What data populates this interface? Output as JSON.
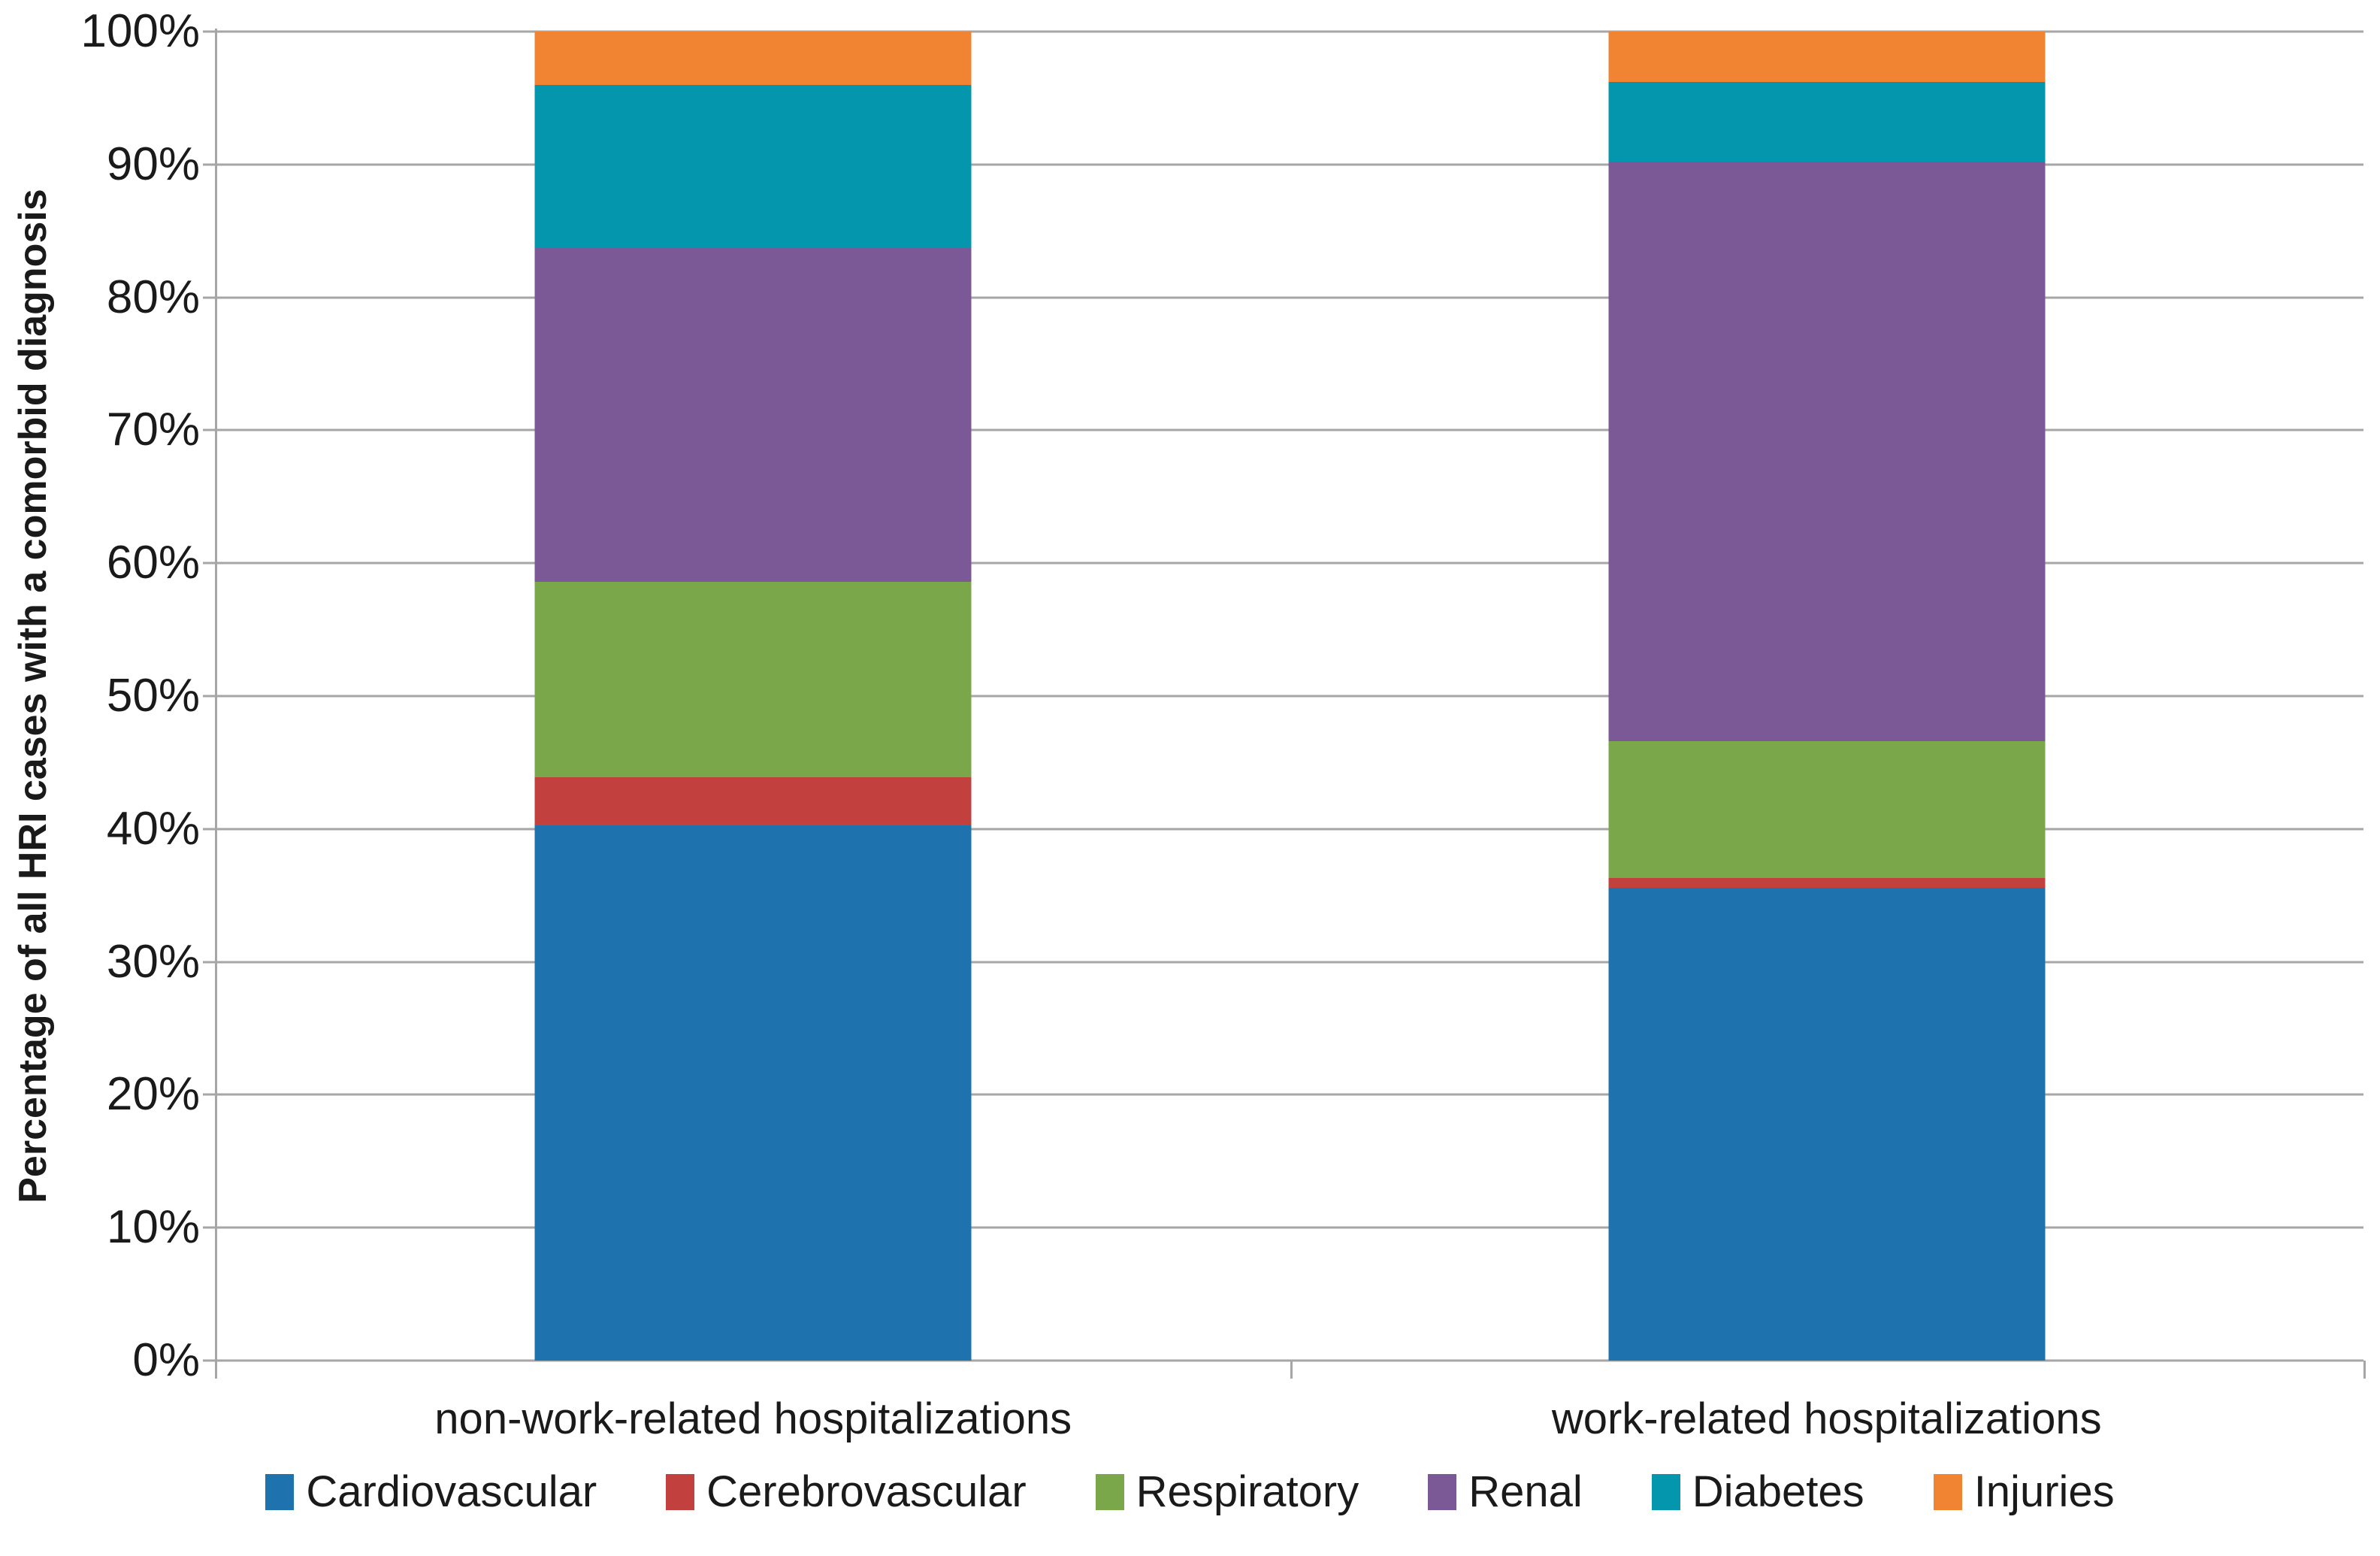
{
  "chart_data": {
    "type": "bar",
    "stacked": true,
    "orientation": "vertical",
    "title": "",
    "xlabel": "",
    "ylabel": "Percentage of all HRI cases with a comorbid diagnosis",
    "categories": [
      "non-work-related hospitalizations",
      "work-related hospitalizations"
    ],
    "series": [
      {
        "name": "Cardiovascular",
        "color": "#1E73AE",
        "values": [
          40.3,
          35.6
        ]
      },
      {
        "name": "Cerebrovascular",
        "color": "#C2413F",
        "values": [
          3.6,
          0.7
        ]
      },
      {
        "name": "Respiratory",
        "color": "#7AA74A",
        "values": [
          14.7,
          10.3
        ]
      },
      {
        "name": "Renal",
        "color": "#7B5997",
        "values": [
          25.1,
          43.6
        ]
      },
      {
        "name": "Diabetes",
        "color": "#0496AC",
        "values": [
          12.3,
          6.0
        ]
      },
      {
        "name": "Injuries",
        "color": "#F08433",
        "values": [
          4.0,
          3.8
        ]
      }
    ],
    "y_ticks": [
      "0%",
      "10%",
      "20%",
      "30%",
      "40%",
      "50%",
      "60%",
      "70%",
      "80%",
      "90%",
      "100%"
    ],
    "ylim": [
      0,
      100
    ],
    "grid": "horizontal-only",
    "legend_position": "bottom",
    "colors": {
      "gridline": "#A6A6A6",
      "axis": "#A6A6A6",
      "text": "#1A1A1A",
      "background": "#FFFFFF"
    }
  }
}
